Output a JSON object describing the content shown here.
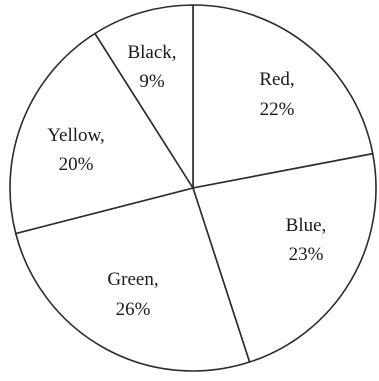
{
  "chart_data": {
    "type": "pie",
    "start_angle_deg": 0,
    "direction": "clockwise",
    "slices": [
      {
        "label": "Red",
        "percent_text": "22%",
        "value": 22
      },
      {
        "label": "Blue",
        "percent_text": "23%",
        "value": 23
      },
      {
        "label": "Green",
        "percent_text": "26%",
        "value": 26
      },
      {
        "label": "Yellow",
        "percent_text": "20%",
        "value": 20
      },
      {
        "label": "Black",
        "percent_text": "9%",
        "value": 9
      }
    ],
    "colors": {
      "fill": "#ffffff",
      "stroke": "#2b2b2b"
    }
  }
}
